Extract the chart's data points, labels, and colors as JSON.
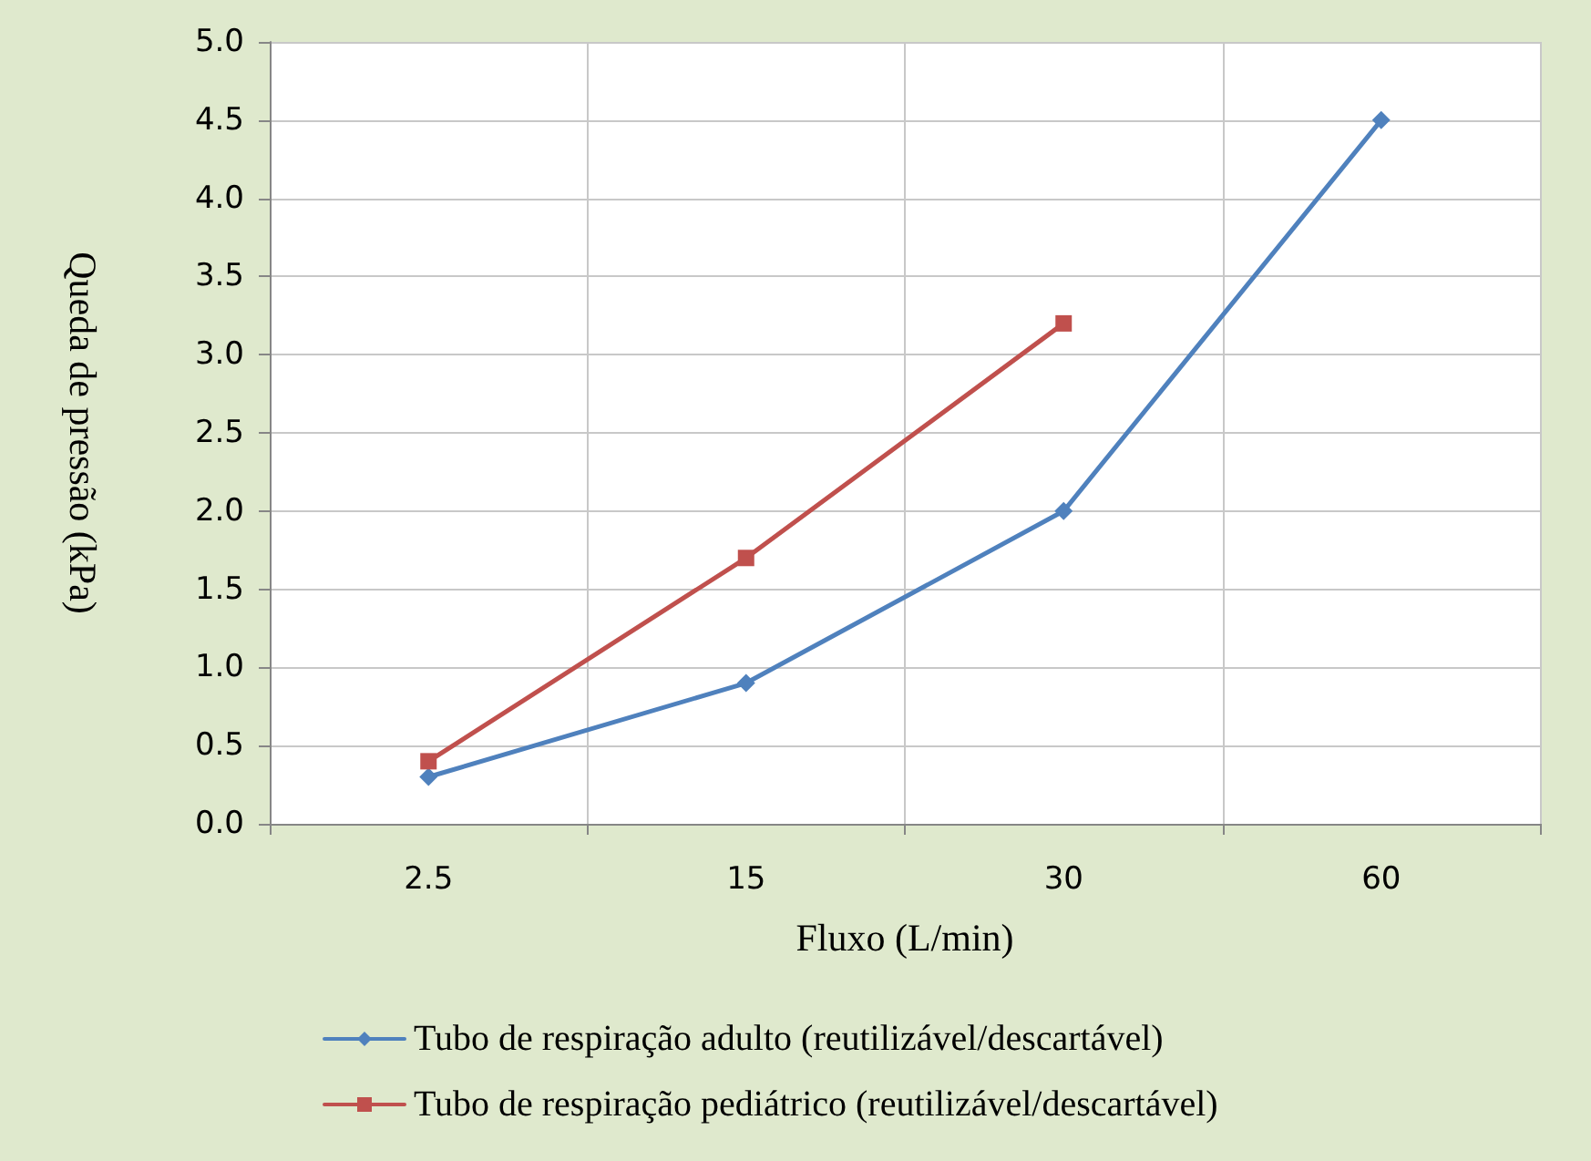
{
  "chart_data": {
    "type": "line",
    "xlabel": "Fluxo (L/min)",
    "ylabel": "Queda de pressão (kPa)",
    "categories": [
      "2.5",
      "15",
      "30",
      "60"
    ],
    "series": [
      {
        "name": "Tubo de respiração adulto (reutilizável/descartável)",
        "color": "#4f81bd",
        "marker": "diamond",
        "values": [
          0.3,
          0.9,
          2.0,
          4.5
        ]
      },
      {
        "name": "Tubo de respiração pediátrico (reutilizável/descartável)",
        "color": "#c0504d",
        "marker": "square",
        "values": [
          0.4,
          1.7,
          3.2,
          null
        ]
      }
    ],
    "ylim": [
      0,
      5
    ],
    "yticks": [
      {
        "value": 0,
        "label": "0.0"
      },
      {
        "value": 0.5,
        "label": "0.5"
      },
      {
        "value": 1,
        "label": "1.0"
      },
      {
        "value": 1.5,
        "label": "1.5"
      },
      {
        "value": 2,
        "label": "2.0"
      },
      {
        "value": 2.5,
        "label": "2.5"
      },
      {
        "value": 3,
        "label": "3.0"
      },
      {
        "value": 3.5,
        "label": "3.5"
      },
      {
        "value": 4,
        "label": "4.0"
      },
      {
        "value": 4.5,
        "label": "4.5"
      },
      {
        "value": 5,
        "label": "5.0"
      }
    ],
    "grid": true,
    "legend": "bottom",
    "line_style": "solid"
  }
}
